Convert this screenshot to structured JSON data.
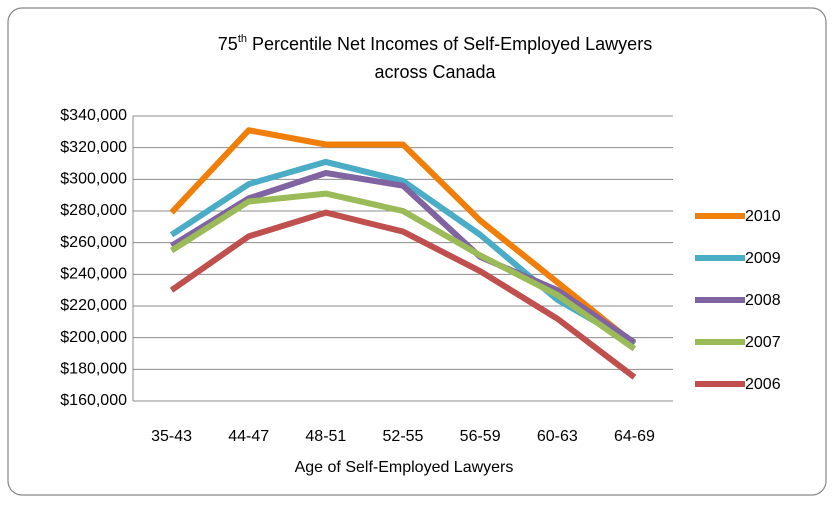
{
  "chart_data": {
    "type": "line",
    "title": [
      "75",
      "th",
      "Percentile Net Incomes of Self-Employed Lawyers",
      "across Canada"
    ],
    "x_label": "Age of Self-Employed Lawyers",
    "categories": [
      "35-43",
      "44-47",
      "48-51",
      "52-55",
      "56-59",
      "60-63",
      "64-69"
    ],
    "series": [
      {
        "name": "2010",
        "color": "#f07f09",
        "values": [
          279000,
          331000,
          322000,
          322000,
          274000,
          235000,
          196000
        ]
      },
      {
        "name": "2009",
        "color": "#4bacc6",
        "values": [
          265000,
          297000,
          311000,
          299000,
          265000,
          224000,
          196000
        ]
      },
      {
        "name": "2008",
        "color": "#8064a2",
        "values": [
          258000,
          288000,
          304000,
          296000,
          251000,
          230000,
          197000
        ]
      },
      {
        "name": "2007",
        "color": "#9bbb59",
        "values": [
          255000,
          286000,
          291000,
          280000,
          252000,
          227000,
          193000
        ]
      },
      {
        "name": "2006",
        "color": "#c0504d",
        "values": [
          230000,
          264000,
          279000,
          267000,
          242000,
          212000,
          175000
        ]
      }
    ],
    "ylim": [
      160000,
      340000
    ],
    "yticks": [
      {
        "value": 160000,
        "label": "$160,000"
      },
      {
        "value": 180000,
        "label": "$180,000"
      },
      {
        "value": 200000,
        "label": "$200,000"
      },
      {
        "value": 220000,
        "label": "$220,000"
      },
      {
        "value": 240000,
        "label": "$240,000"
      },
      {
        "value": 260000,
        "label": "$260,000"
      },
      {
        "value": 280000,
        "label": "$280,000"
      },
      {
        "value": 300000,
        "label": "$300,000"
      },
      {
        "value": 320000,
        "label": "$320,000"
      },
      {
        "value": 340000,
        "label": "$340,000"
      }
    ],
    "grid": true,
    "legend": "right"
  }
}
